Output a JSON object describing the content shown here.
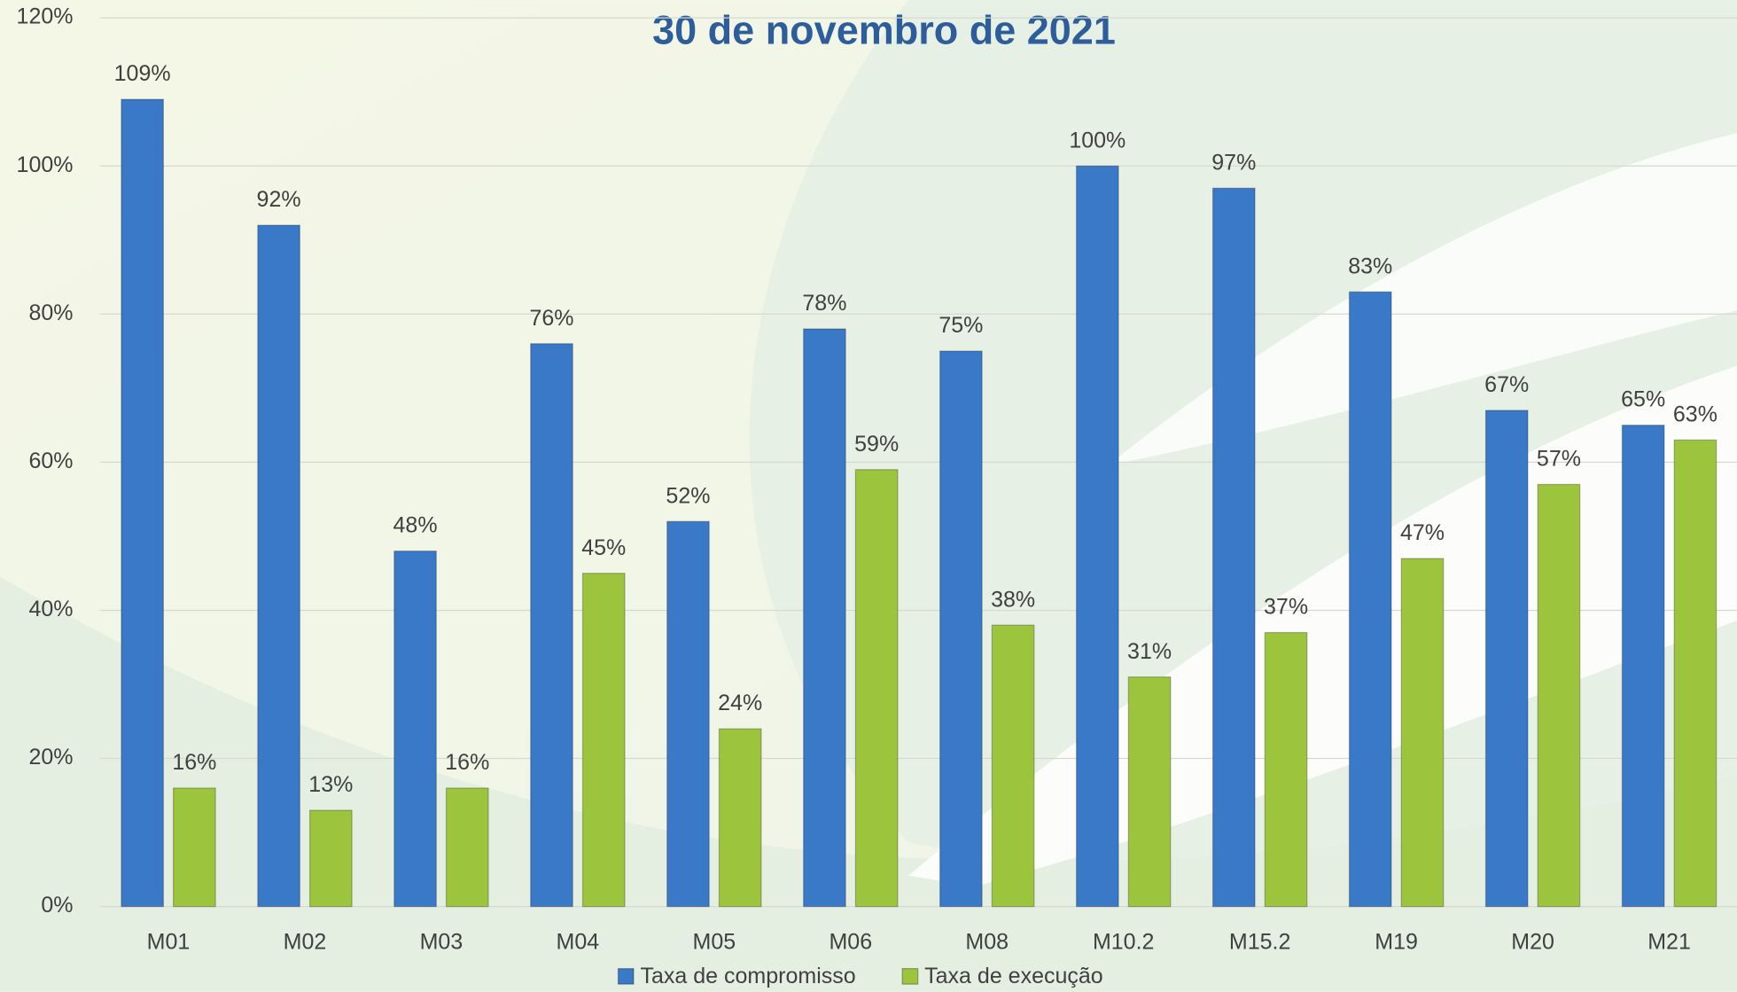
{
  "chart_data": {
    "type": "bar",
    "title": "30 de novembro de 2021",
    "categories": [
      "M01",
      "M02",
      "M03",
      "M04",
      "M05",
      "M06",
      "M08",
      "M10.2",
      "M15.2",
      "M19",
      "M20",
      "M21"
    ],
    "series": [
      {
        "name": "Taxa de compromisso",
        "color": "#3a78c8",
        "values": [
          109,
          92,
          48,
          76,
          52,
          78,
          75,
          100,
          97,
          83,
          67,
          65
        ],
        "value_labels": [
          "109%",
          "92%",
          "48%",
          "76%",
          "52%",
          "78%",
          "75%",
          "100%",
          "97%",
          "83%",
          "67%",
          "65%"
        ]
      },
      {
        "name": "Taxa de execução",
        "color": "#9cc43c",
        "values": [
          16,
          13,
          16,
          45,
          24,
          59,
          38,
          31,
          37,
          47,
          57,
          63
        ],
        "value_labels": [
          "16%",
          "13%",
          "16%",
          "45%",
          "24%",
          "59%",
          "38%",
          "31%",
          "37%",
          "47%",
          "57%",
          "63%"
        ]
      }
    ],
    "ylim": [
      0,
      120
    ],
    "yticks": [
      {
        "value": 0,
        "label": "0%"
      },
      {
        "value": 20,
        "label": "20%"
      },
      {
        "value": 40,
        "label": "40%"
      },
      {
        "value": 60,
        "label": "60%"
      },
      {
        "value": 80,
        "label": "80%"
      },
      {
        "value": 100,
        "label": "100%"
      },
      {
        "value": 120,
        "label": "120%"
      }
    ],
    "grid": true,
    "legend": "bottom"
  }
}
